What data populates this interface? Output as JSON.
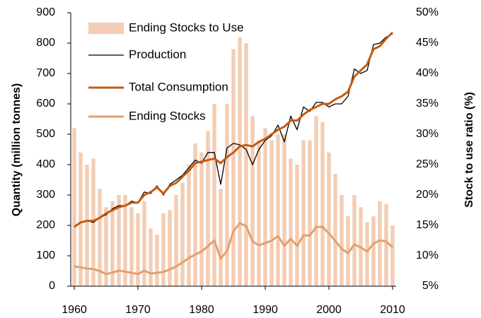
{
  "chart_data": {
    "type": "combo",
    "x": [
      1960,
      1961,
      1962,
      1963,
      1964,
      1965,
      1966,
      1967,
      1968,
      1969,
      1970,
      1971,
      1972,
      1973,
      1974,
      1975,
      1976,
      1977,
      1978,
      1979,
      1980,
      1981,
      1982,
      1983,
      1984,
      1985,
      1986,
      1987,
      1988,
      1989,
      1990,
      1991,
      1992,
      1993,
      1994,
      1995,
      1996,
      1997,
      1998,
      1999,
      2000,
      2001,
      2002,
      2003,
      2004,
      2005,
      2006,
      2007,
      2008,
      2009,
      2010
    ],
    "xlim": [
      1960,
      2010
    ],
    "xticks": [
      1960,
      1970,
      1980,
      1990,
      2000,
      2010
    ],
    "ylabel": "Quantity (million tonnes)",
    "y2label": "Stock to use ratio (%)",
    "ylim": [
      0,
      900
    ],
    "yticks": [
      0,
      100,
      200,
      300,
      400,
      500,
      600,
      700,
      800,
      900
    ],
    "y2lim": [
      5,
      50
    ],
    "y2ticks": [
      {
        "value": 5,
        "label": "5%"
      },
      {
        "value": 10,
        "label": "10%"
      },
      {
        "value": 15,
        "label": "15%"
      },
      {
        "value": 20,
        "label": "20%"
      },
      {
        "value": 25,
        "label": "25%"
      },
      {
        "value": 30,
        "label": "30%"
      },
      {
        "value": 35,
        "label": "35%"
      },
      {
        "value": 40,
        "label": "40%"
      },
      {
        "value": 45,
        "label": "45%"
      },
      {
        "value": 50,
        "label": "50%"
      }
    ],
    "legend": "upper left",
    "series": [
      {
        "name": "Ending Stocks to Use",
        "type": "bar",
        "axis": "y2",
        "color": "#f3cdb3",
        "values": [
          31,
          27,
          25,
          26,
          21,
          18,
          19,
          20,
          20,
          18,
          17,
          19,
          14.5,
          13.5,
          17,
          17.5,
          20,
          22,
          25,
          28.5,
          27,
          30.5,
          35,
          21,
          35,
          44,
          46,
          45,
          33,
          29,
          31,
          29,
          30,
          30,
          26,
          25,
          29,
          29,
          33,
          32,
          27,
          23.5,
          20,
          16.5,
          20,
          18,
          15.5,
          16.5,
          19,
          18.5,
          15
        ]
      },
      {
        "name": "Production",
        "type": "line",
        "axis": "y",
        "color": "#000000",
        "width": 1.3,
        "values": [
          195,
          210,
          215,
          210,
          225,
          235,
          255,
          265,
          265,
          280,
          275,
          310,
          305,
          330,
          300,
          335,
          350,
          365,
          390,
          415,
          405,
          440,
          440,
          335,
          455,
          470,
          465,
          450,
          400,
          450,
          480,
          495,
          530,
          475,
          560,
          515,
          590,
          575,
          605,
          605,
          590,
          600,
          600,
          625,
          715,
          700,
          710,
          795,
          800,
          820,
          830
        ]
      },
      {
        "name": "Total Consumption",
        "type": "line",
        "axis": "y",
        "color": "#c55a11",
        "width": 3,
        "values": [
          195,
          210,
          215,
          215,
          225,
          240,
          250,
          260,
          265,
          275,
          275,
          300,
          310,
          325,
          305,
          330,
          340,
          360,
          380,
          405,
          410,
          415,
          420,
          405,
          425,
          440,
          460,
          465,
          460,
          475,
          485,
          500,
          515,
          525,
          545,
          545,
          565,
          580,
          590,
          600,
          600,
          615,
          625,
          640,
          690,
          710,
          730,
          780,
          790,
          815,
          835
        ]
      },
      {
        "name": "Ending Stocks",
        "type": "line",
        "axis": "y",
        "color": "#e2a070",
        "width": 3,
        "values": [
          65,
          62,
          58,
          56,
          50,
          40,
          45,
          51,
          48,
          44,
          40,
          51,
          42,
          44,
          47,
          55,
          65,
          78,
          93,
          104,
          114,
          132,
          151,
          91,
          116,
          181,
          207,
          198,
          147,
          135,
          142,
          150,
          165,
          133,
          156,
          133,
          167,
          167,
          195,
          195,
          174,
          149,
          123,
          109,
          137,
          128,
          114,
          140,
          151,
          147,
          128
        ]
      }
    ]
  }
}
